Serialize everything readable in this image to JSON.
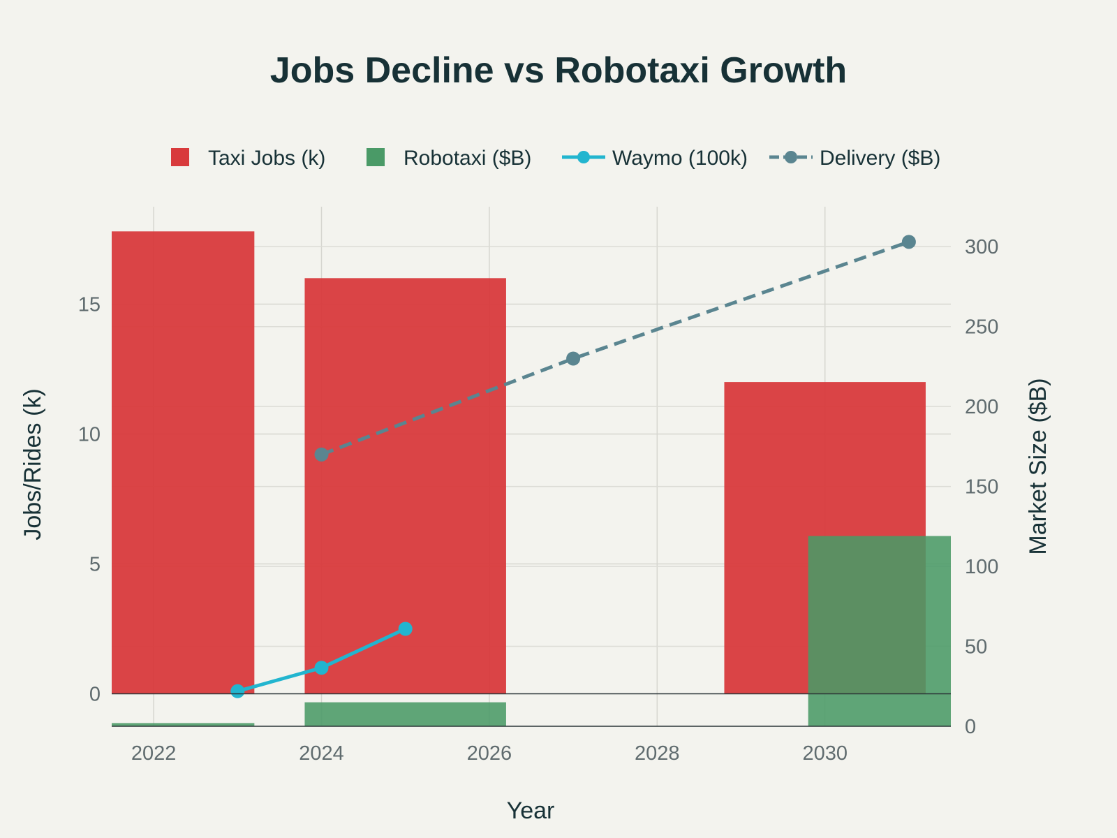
{
  "chart_data": {
    "type": "bar",
    "title": "Jobs Decline vs Robotaxi Growth",
    "xlabel": "Year",
    "ylabel": "Jobs/Rides (k)",
    "y2label": "Market Size ($B)",
    "xlim": [
      2021.5,
      2031.5
    ],
    "ylim": [
      -1.25,
      18.75
    ],
    "y2lim": [
      0,
      325
    ],
    "x_ticks": [
      2022,
      2024,
      2026,
      2028,
      2030
    ],
    "y_ticks": [
      0,
      5,
      10,
      15
    ],
    "y2_ticks": [
      0,
      50,
      100,
      150,
      200,
      250,
      300
    ],
    "grid": true,
    "legend_position": "top",
    "series": [
      {
        "name": "Taxi Jobs (k)",
        "type": "bar",
        "axis": "y",
        "color": "#d83a3c",
        "x": [
          2022,
          2025,
          2030
        ],
        "values": [
          17.8,
          16.0,
          12.0
        ]
      },
      {
        "name": "Robotaxi ($B)",
        "type": "bar",
        "axis": "y2",
        "color": "#4a9a67",
        "x": [
          2022,
          2025,
          2031
        ],
        "values": [
          2,
          15,
          119
        ]
      },
      {
        "name": "Waymo (100k)",
        "type": "line",
        "axis": "y",
        "color": "#22b5cf",
        "x": [
          2023,
          2024,
          2025
        ],
        "values": [
          0.1,
          1.0,
          2.5
        ]
      },
      {
        "name": "Delivery ($B)",
        "type": "line",
        "axis": "y2",
        "dashed": true,
        "color": "#5a8590",
        "x": [
          2024,
          2027,
          2031
        ],
        "values": [
          170,
          230,
          303
        ]
      }
    ]
  }
}
